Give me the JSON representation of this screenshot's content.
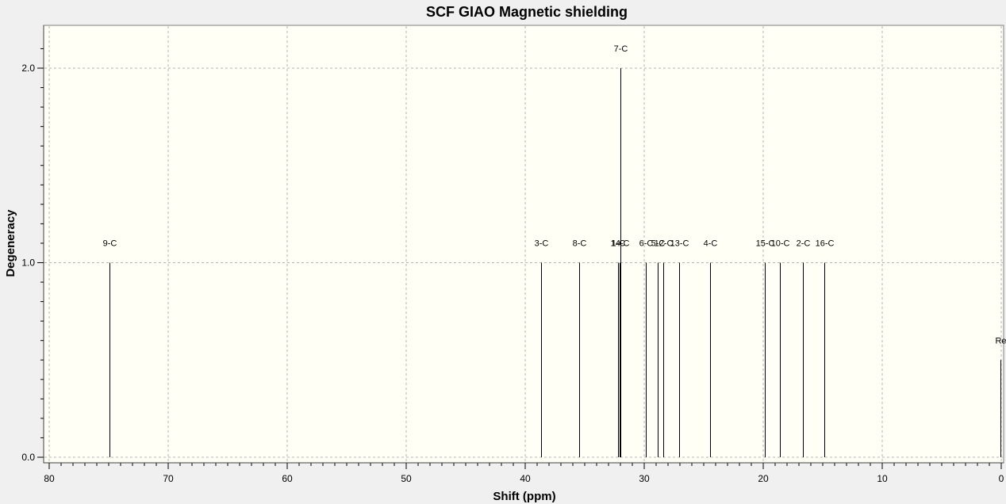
{
  "chart_data": {
    "type": "bar",
    "title": "SCF GIAO Magnetic shielding",
    "xlabel": "Shift (ppm)",
    "ylabel": "Degeneracy",
    "xlim": [
      80,
      0
    ],
    "ylim": [
      0,
      2.2
    ],
    "x_reversed": true,
    "grid": true,
    "x_ticks": [
      80,
      70,
      60,
      50,
      40,
      30,
      20,
      10,
      0
    ],
    "y_ticks": [
      0.0,
      1.0,
      2.0
    ],
    "x_tick_labels": [
      "80",
      "70",
      "60",
      "50",
      "40",
      "30",
      "20",
      "10",
      "0"
    ],
    "y_tick_labels": [
      "0.0",
      "1.0",
      "2.0"
    ],
    "peaks": [
      {
        "label": "9-C",
        "x": 74.9,
        "y": 1.0
      },
      {
        "label": "3-C",
        "x": 38.7,
        "y": 1.0
      },
      {
        "label": "8-C",
        "x": 35.5,
        "y": 1.0
      },
      {
        "label": "1-C",
        "x": 32.2,
        "y": 1.0
      },
      {
        "label": "14-C",
        "x": 32.1,
        "y": 1.0
      },
      {
        "label": "7-C",
        "x": 32.0,
        "y": 2.0
      },
      {
        "label": "6-C",
        "x": 29.9,
        "y": 1.0
      },
      {
        "label": "5-C",
        "x": 28.9,
        "y": 1.0
      },
      {
        "label": "12-C",
        "x": 28.4,
        "y": 1.0
      },
      {
        "label": "13-C",
        "x": 27.1,
        "y": 1.0
      },
      {
        "label": "4-C",
        "x": 24.5,
        "y": 1.0
      },
      {
        "label": "15-C",
        "x": 19.9,
        "y": 1.0
      },
      {
        "label": "10-C",
        "x": 18.6,
        "y": 1.0
      },
      {
        "label": "2-C",
        "x": 16.7,
        "y": 1.0
      },
      {
        "label": "16-C",
        "x": 14.9,
        "y": 1.0
      },
      {
        "label": "Re",
        "x": 0.1,
        "y": 0.5
      }
    ]
  },
  "colors": {
    "plot_background": "#fffff5",
    "page_background": "#f0f0f0",
    "peak_line": "#000000",
    "grid": "#b4b4b4"
  }
}
